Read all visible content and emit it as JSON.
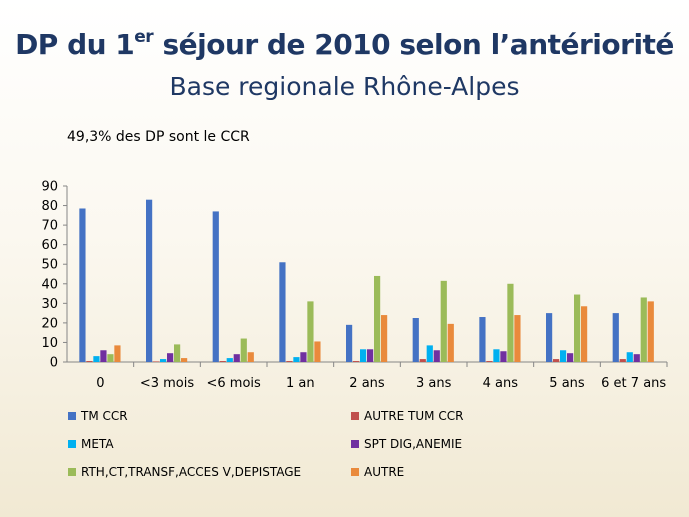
{
  "slide": {
    "title_main": "DP du 1",
    "title_sup": "er",
    "title_rest": " séjour de 2010 selon l’antériorité",
    "subtitle": "Base regionale Rhône-Alpes",
    "note": "49,3% des DP sont le CCR"
  },
  "chart_data": {
    "type": "bar",
    "categories": [
      "0",
      "<3 mois",
      "<6 mois",
      "1 an",
      "2 ans",
      "3 ans",
      "4 ans",
      "5 ans",
      "6 et 7 ans"
    ],
    "ylim": [
      0,
      90
    ],
    "yticks": [
      0,
      10,
      20,
      30,
      40,
      50,
      60,
      70,
      80,
      90
    ],
    "grid": false,
    "legend_position": "bottom",
    "series": [
      {
        "name": "TM CCR",
        "color": "#4472c4",
        "values": [
          78.5,
          83,
          77,
          51,
          19,
          22.5,
          23,
          25,
          25
        ]
      },
      {
        "name": "AUTRE TUM CCR",
        "color": "#c0504d",
        "values": [
          0.5,
          0.3,
          0.5,
          0.5,
          0.5,
          1.5,
          0.5,
          1.5,
          1.5
        ]
      },
      {
        "name": "META",
        "color": "#00b0f0",
        "values": [
          3,
          1.5,
          2,
          2.5,
          6.5,
          8.5,
          6.5,
          6,
          5
        ]
      },
      {
        "name": "SPT DIG,ANEMIE",
        "color": "#7030a0",
        "values": [
          6,
          4.5,
          4,
          5,
          6.5,
          6,
          5.5,
          4.5,
          4
        ]
      },
      {
        "name": "RTH,CT,TRANSF,ACCES V,DEPISTAGE",
        "color": "#9bbb59",
        "values": [
          4,
          9,
          12,
          31,
          44,
          41.5,
          40,
          34.5,
          33
        ]
      },
      {
        "name": "AUTRE",
        "color": "#e98a3c",
        "values": [
          8.5,
          2,
          5,
          10.5,
          24,
          19.5,
          24,
          28.5,
          31
        ]
      }
    ]
  }
}
